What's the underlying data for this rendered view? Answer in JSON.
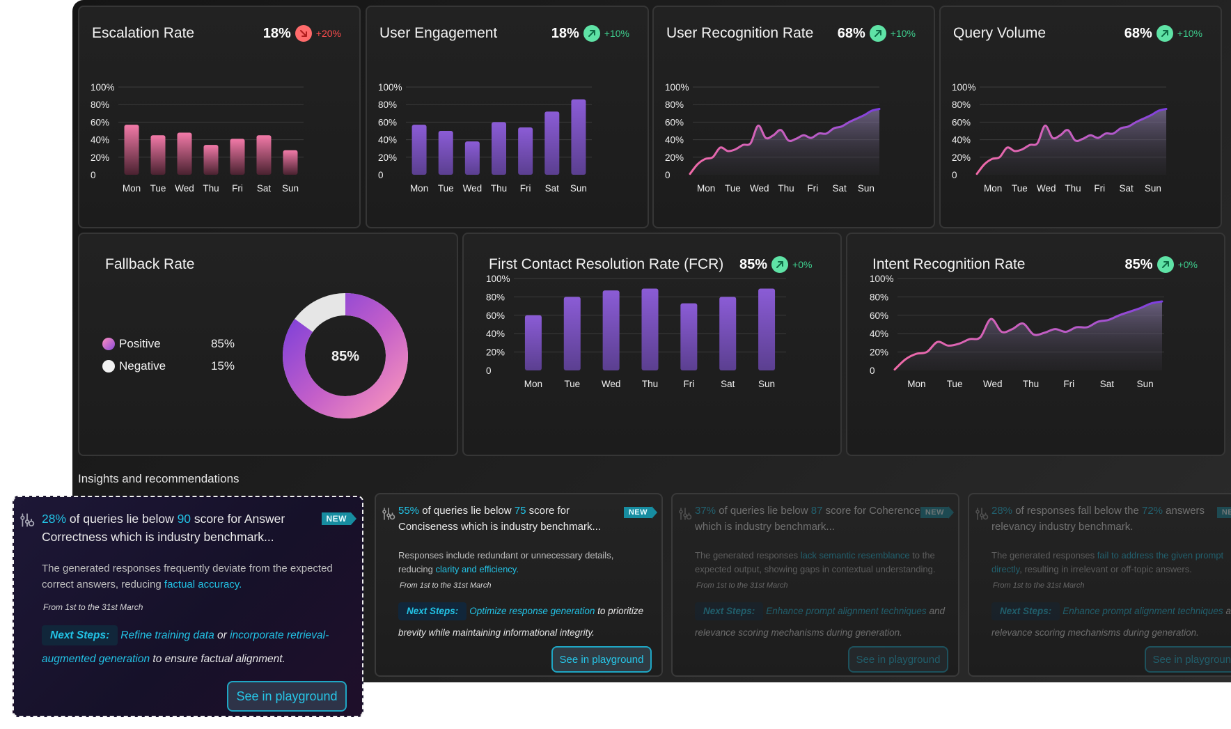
{
  "colors": {
    "accent": "#22c3e6",
    "purple": "#7f52c9",
    "pink": "#e8709a",
    "up": "#3ecf8e",
    "down": "#ff4d4d"
  },
  "days": [
    "Mon",
    "Tue",
    "Wed",
    "Thu",
    "Fri",
    "Sat",
    "Sun"
  ],
  "cards": {
    "escalation": {
      "title": "Escalation Rate",
      "value": "18%",
      "trend": "+20%",
      "direction": "down"
    },
    "engagement": {
      "title": "User Engagement",
      "value": "18%",
      "trend": "+10%",
      "direction": "up"
    },
    "recognition": {
      "title": "User Recognition Rate",
      "value": "68%",
      "trend": "+10%",
      "direction": "up"
    },
    "query": {
      "title": "Query Volume",
      "value": "68%",
      "trend": "+10%",
      "direction": "up"
    },
    "fallback": {
      "title": "Fallback Rate",
      "center": "85%",
      "legend": [
        {
          "label": "Positive",
          "value": "85%"
        },
        {
          "label": "Negative",
          "value": "15%"
        }
      ]
    },
    "fcr": {
      "title": "First Contact Resolution Rate (FCR)",
      "value": "85%",
      "trend": "+0%",
      "direction": "up"
    },
    "intent": {
      "title": "Intent Recognition Rate",
      "value": "85%",
      "trend": "+0%",
      "direction": "up"
    }
  },
  "chart_data": [
    {
      "id": "escalation",
      "type": "bar",
      "title": "Escalation Rate",
      "categories": [
        "Mon",
        "Tue",
        "Wed",
        "Thu",
        "Fri",
        "Sat",
        "Sun"
      ],
      "values": [
        57,
        45,
        48,
        34,
        41,
        45,
        28
      ],
      "yticks": [
        "0",
        "20%",
        "40%",
        "60%",
        "80%",
        "100%"
      ],
      "ylim": [
        0,
        100
      ]
    },
    {
      "id": "engagement",
      "type": "bar",
      "title": "User Engagement",
      "categories": [
        "Mon",
        "Tue",
        "Wed",
        "Thu",
        "Fri",
        "Sat",
        "Sun"
      ],
      "values": [
        57,
        50,
        38,
        60,
        54,
        72,
        86
      ],
      "yticks": [
        "0",
        "20%",
        "40%",
        "60%",
        "80%",
        "100%"
      ],
      "ylim": [
        0,
        100
      ]
    },
    {
      "id": "recognition",
      "type": "area",
      "title": "User Recognition Rate",
      "categories": [
        "Mon",
        "Tue",
        "Wed",
        "Thu",
        "Fri",
        "Sat",
        "Sun"
      ],
      "x": [
        0,
        4,
        8,
        12,
        16,
        20,
        24,
        28,
        32,
        36,
        40,
        44,
        48,
        52,
        56,
        60,
        64,
        68,
        72,
        76,
        80,
        84,
        88,
        92,
        96,
        100
      ],
      "y": [
        1,
        12,
        18,
        20,
        31,
        27,
        29,
        34,
        36,
        56,
        42,
        45,
        51,
        39,
        41,
        45,
        42,
        47,
        47,
        53,
        55,
        60,
        64,
        68,
        73,
        75
      ],
      "yticks": [
        "0",
        "20%",
        "40%",
        "60%",
        "80%",
        "100%"
      ],
      "ylim": [
        0,
        100
      ]
    },
    {
      "id": "query",
      "type": "area",
      "title": "Query Volume",
      "categories": [
        "Mon",
        "Tue",
        "Wed",
        "Thu",
        "Fri",
        "Sat",
        "Sun"
      ],
      "x": [
        0,
        4,
        8,
        12,
        16,
        20,
        24,
        28,
        32,
        36,
        40,
        44,
        48,
        52,
        56,
        60,
        64,
        68,
        72,
        76,
        80,
        84,
        88,
        92,
        96,
        100
      ],
      "y": [
        1,
        12,
        18,
        20,
        31,
        27,
        29,
        34,
        36,
        56,
        42,
        45,
        51,
        39,
        41,
        45,
        42,
        47,
        47,
        53,
        55,
        60,
        64,
        68,
        73,
        75
      ],
      "yticks": [
        "0",
        "20%",
        "40%",
        "60%",
        "80%",
        "100%"
      ],
      "ylim": [
        0,
        100
      ]
    },
    {
      "id": "fallback",
      "type": "pie",
      "title": "Fallback Rate",
      "categories": [
        "Positive",
        "Negative"
      ],
      "values": [
        85,
        15
      ]
    },
    {
      "id": "fcr",
      "type": "bar",
      "title": "First Contact Resolution Rate (FCR)",
      "categories": [
        "Mon",
        "Tue",
        "Wed",
        "Thu",
        "Fri",
        "Sat",
        "Sun"
      ],
      "values": [
        60,
        80,
        87,
        89,
        73,
        80,
        89
      ],
      "yticks": [
        "0",
        "20%",
        "40%",
        "60%",
        "80%",
        "100%"
      ],
      "ylim": [
        0,
        100
      ]
    },
    {
      "id": "intent",
      "type": "area",
      "title": "Intent Recognition Rate",
      "categories": [
        "Mon",
        "Tue",
        "Wed",
        "Thu",
        "Fri",
        "Sat",
        "Sun"
      ],
      "x": [
        0,
        4,
        8,
        12,
        16,
        20,
        24,
        28,
        32,
        36,
        40,
        44,
        48,
        52,
        56,
        60,
        64,
        68,
        72,
        76,
        80,
        84,
        88,
        92,
        96,
        100
      ],
      "y": [
        1,
        12,
        18,
        20,
        31,
        27,
        29,
        34,
        36,
        56,
        42,
        45,
        51,
        39,
        41,
        45,
        42,
        47,
        47,
        53,
        55,
        60,
        64,
        68,
        73,
        75
      ],
      "yticks": [
        "0",
        "20%",
        "40%",
        "60%",
        "80%",
        "100%"
      ],
      "ylim": [
        0,
        100
      ]
    }
  ],
  "insights": {
    "section_title": "Insights and recommendations",
    "new_label": "NEW",
    "featured": {
      "pct": "28%",
      "t1": " of queries lie below ",
      "score": "90",
      "t2": " score for Answer Correctness which is industry benchmark...",
      "desc": "The generated responses frequently deviate from the expected correct answers, reducing ",
      "desc_link": "factual accuracy.",
      "date": "From 1st to the 31st March",
      "next_label": "Next Steps:",
      "step_a": "Refine training data",
      "step_or": " or ",
      "step_b": "incorporate retrieval-augmented generation",
      "step_tail": " to ensure factual alignment.",
      "button": "See in playground"
    },
    "card1": {
      "pct": "55%",
      "t1": " of queries lie below ",
      "score": "75",
      "t2": " score for Conciseness which is industry benchmark...",
      "desc": "Responses include redundant or unnecessary details, reducing ",
      "desc_link": "clarity and efficiency.",
      "date": "From 1st to the 31st March",
      "next_label": "Next Steps:",
      "step_a": "Optimize response generation",
      "step_tail": " to prioritize brevity while maintaining informational integrity.",
      "button": "See in playground"
    },
    "card2": {
      "pct": "37%",
      "t1": " of queries lie below ",
      "score": "87",
      "t2": " score for Coherence which is industry benchmark...",
      "desc": "The generated responses ",
      "desc_link": "lack semantic resemblance",
      "desc_tail": " to the expected output, showing gaps in contextual understanding.",
      "date": "From 1st to the 31st March",
      "next_label": "Next Steps:",
      "step_a": "Enhance prompt alignment techniques",
      "step_tail": " and relevance scoring mechanisms during generation.",
      "button": "See in playground"
    },
    "card3": {
      "pct": "28%",
      "t1": " of responses fall below the ",
      "score": "72%",
      "t2": " answers relevancy industry benchmark.",
      "desc": "The generated responses ",
      "desc_link": "fail to address the given prompt directly",
      "desc_tail": ", resulting in irrelevant or off-topic answers.",
      "date": "From 1st to the 31st March",
      "next_label": "Next Steps:",
      "step_a": "Enhance prompt alignment techniques",
      "step_tail": " and relevance scoring mechanisms during generation.",
      "button": "See in playground"
    }
  }
}
